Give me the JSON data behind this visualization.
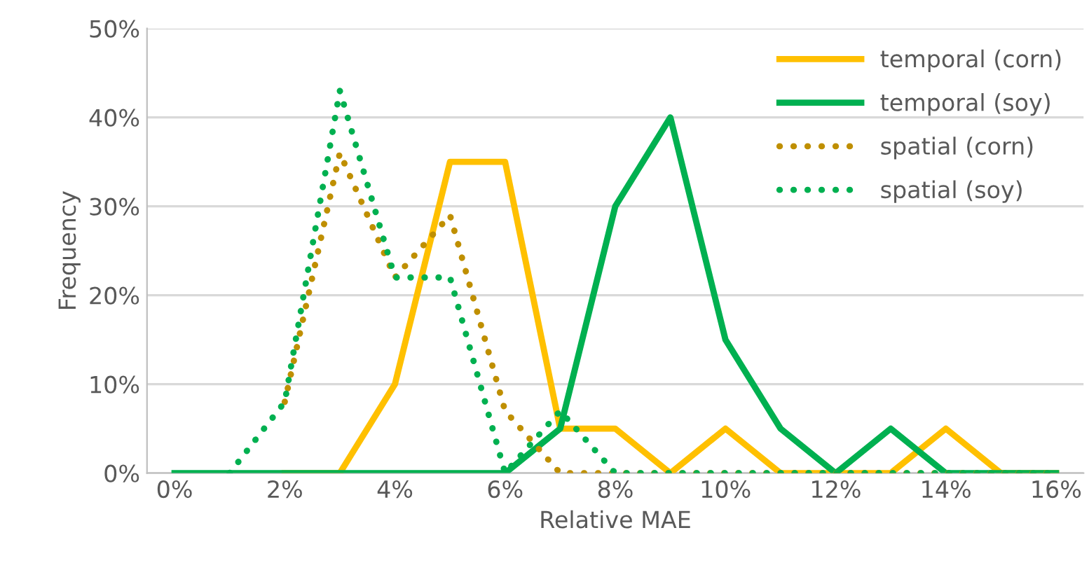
{
  "chart_data": {
    "type": "line",
    "xlabel": "Relative MAE",
    "ylabel": "Frequency",
    "x": [
      0,
      1,
      2,
      3,
      4,
      5,
      6,
      7,
      8,
      9,
      10,
      11,
      12,
      13,
      14,
      15,
      16
    ],
    "series": [
      {
        "name": "temporal (corn)",
        "color": "#ffc000",
        "line_style": "solid",
        "values": [
          null,
          null,
          0,
          0,
          10,
          35,
          35,
          5,
          5,
          0,
          5,
          0,
          0,
          0,
          5,
          0,
          0
        ]
      },
      {
        "name": "temporal (soy)",
        "color": "#00b050",
        "line_style": "solid",
        "values": [
          0,
          0,
          0,
          0,
          0,
          0,
          0,
          5,
          30,
          40,
          15,
          5,
          0,
          5,
          0,
          0,
          0
        ]
      },
      {
        "name": "spatial (corn)",
        "color": "#bf8f00",
        "line_style": "dotted",
        "values": [
          null,
          null,
          8,
          36,
          22,
          29,
          7,
          0,
          0,
          0,
          0,
          0,
          0,
          0,
          0,
          0,
          0
        ]
      },
      {
        "name": "spatial (soy)",
        "color": "#00b050",
        "line_style": "dotted",
        "values": [
          null,
          0,
          8,
          43,
          22,
          22,
          0,
          7,
          0,
          0,
          0,
          0,
          0,
          0,
          0,
          0,
          0
        ]
      }
    ],
    "xlim": [
      -0.5,
      16.5
    ],
    "xticks": [
      {
        "value": 0,
        "label": "0%"
      },
      {
        "value": 2,
        "label": "2%"
      },
      {
        "value": 4,
        "label": "4%"
      },
      {
        "value": 6,
        "label": "6%"
      },
      {
        "value": 8,
        "label": "8%"
      },
      {
        "value": 10,
        "label": "10%"
      },
      {
        "value": 12,
        "label": "12%"
      },
      {
        "value": 14,
        "label": "14%"
      },
      {
        "value": 16,
        "label": "16%"
      }
    ],
    "ylim": [
      0,
      50
    ],
    "yticks": [
      {
        "value": 0,
        "label": "0%"
      },
      {
        "value": 10,
        "label": "10%"
      },
      {
        "value": 20,
        "label": "20%"
      },
      {
        "value": 30,
        "label": "30%"
      },
      {
        "value": 40,
        "label": "40%"
      },
      {
        "value": 50,
        "label": "50%"
      }
    ],
    "grid": "y",
    "legend": "top right",
    "marker": "none"
  }
}
